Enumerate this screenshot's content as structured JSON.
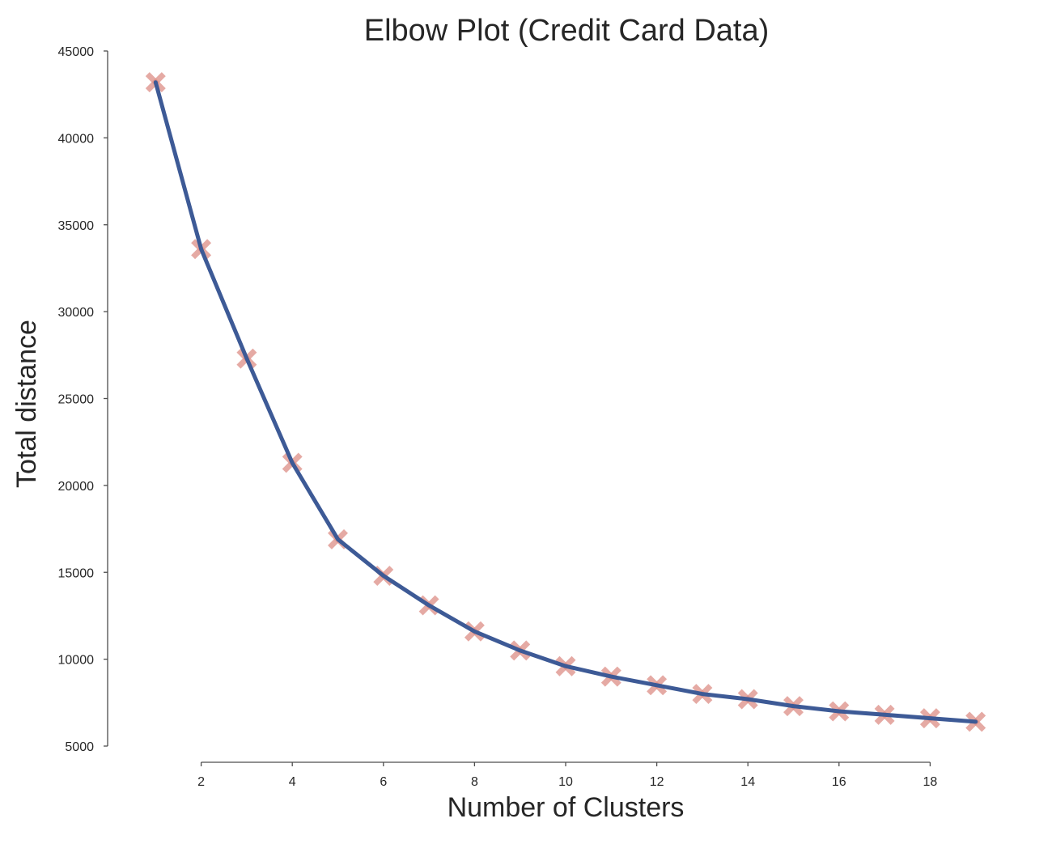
{
  "chart_data": {
    "type": "line",
    "title": "Elbow Plot (Credit Card Data)",
    "xlabel": "Number of Clusters",
    "ylabel": "Total distance",
    "x": [
      1,
      2,
      3,
      4,
      5,
      6,
      7,
      8,
      9,
      10,
      11,
      12,
      13,
      14,
      15,
      16,
      17,
      18,
      19
    ],
    "series": [
      {
        "values": [
          43200,
          33600,
          27300,
          21300,
          16900,
          14800,
          13100,
          11600,
          10500,
          9600,
          9000,
          8500,
          8000,
          7700,
          7300,
          7000,
          6800,
          6600,
          6400
        ],
        "line_color": "#3d5a96",
        "marker": "X",
        "marker_color": "#dd8e86"
      }
    ],
    "xlim": [
      0,
      20
    ],
    "ylim": [
      5000,
      45000
    ],
    "x_ticks": [
      2,
      4,
      6,
      8,
      10,
      12,
      14,
      16,
      18
    ],
    "y_ticks": [
      5000,
      10000,
      15000,
      20000,
      25000,
      30000,
      35000,
      40000,
      45000
    ],
    "x_tick_labels": [
      "2",
      "4",
      "6",
      "8",
      "10",
      "12",
      "14",
      "16",
      "18"
    ],
    "y_tick_labels": [
      "5000",
      "10000",
      "15000",
      "20000",
      "25000",
      "30000",
      "35000",
      "40000",
      "45000"
    ],
    "grid": false,
    "legend": "none",
    "spines": "despined (left and bottom only, offset)"
  }
}
